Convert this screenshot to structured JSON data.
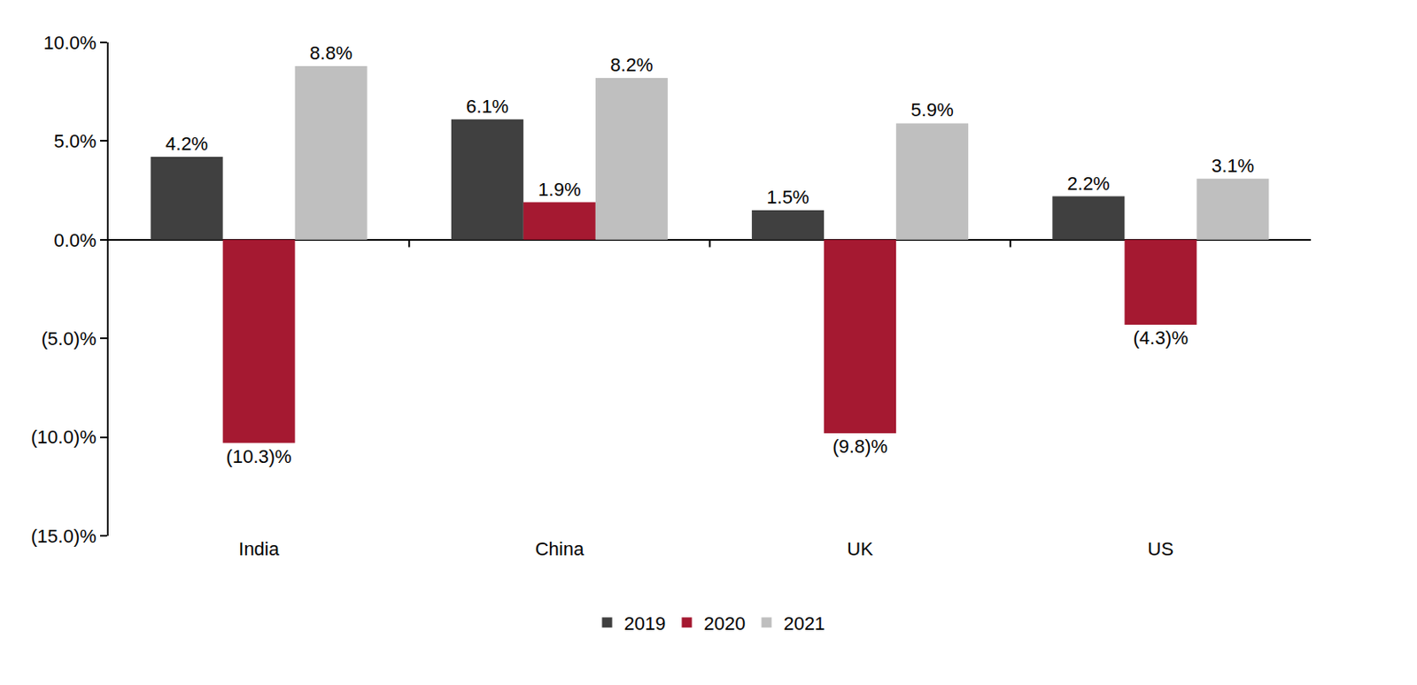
{
  "chart_data": {
    "type": "bar",
    "categories": [
      "India",
      "China",
      "UK",
      "US"
    ],
    "series": [
      {
        "name": "2019",
        "color": "#404040",
        "values": [
          4.2,
          6.1,
          1.5,
          2.2
        ],
        "value_labels": [
          "4.2%",
          "6.1%",
          "1.5%",
          "2.2%"
        ]
      },
      {
        "name": "2020",
        "color": "#A51931",
        "values": [
          -10.3,
          1.9,
          -9.8,
          -4.3
        ],
        "value_labels": [
          "(10.3)%",
          "1.9%",
          "(9.8)%",
          "(4.3)%"
        ]
      },
      {
        "name": "2021",
        "color": "#BFBFBF",
        "values": [
          8.8,
          8.2,
          5.9,
          3.1
        ],
        "value_labels": [
          "8.8%",
          "8.2%",
          "5.9%",
          "3.1%"
        ]
      }
    ],
    "ylim": [
      -15,
      10
    ],
    "yticks": [
      {
        "value": -15,
        "label": "(15.0)%"
      },
      {
        "value": -10,
        "label": "(10.0)%"
      },
      {
        "value": -5,
        "label": "(5.0)%"
      },
      {
        "value": 0,
        "label": "0.0%"
      },
      {
        "value": 5,
        "label": "5.0%"
      },
      {
        "value": 10,
        "label": "10.0%"
      }
    ],
    "grid": false,
    "legend": "bottom",
    "data_labels": true
  }
}
